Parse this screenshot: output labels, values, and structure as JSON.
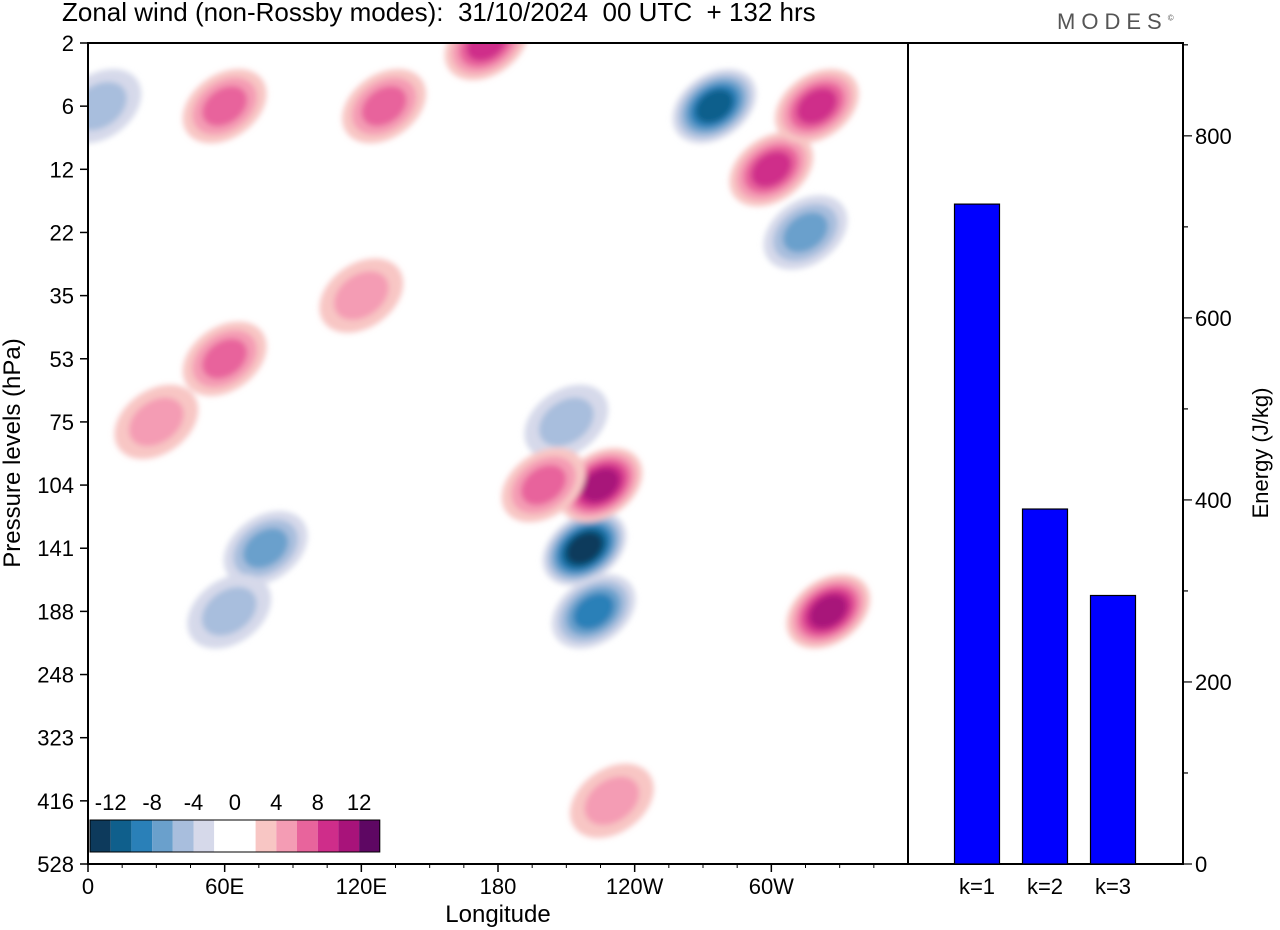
{
  "title": "Zonal wind (non-Rossby modes):  31/10/2024  00 UTC  + 132 hrs",
  "brand": "MODES",
  "brand_mark": "©",
  "colorbar": {
    "labels": [
      "-12",
      "-8",
      "-4",
      "0",
      "4",
      "8",
      "12"
    ],
    "colors": [
      "#0d3a5c",
      "#0f5f8c",
      "#2a80b8",
      "#6aa0cc",
      "#a8bedd",
      "#d6d9ea",
      "#ffffff",
      "#ffffff",
      "#f8c6c4",
      "#f49cb4",
      "#e8649c",
      "#cf2d8a",
      "#a8137a",
      "#5e0763"
    ]
  },
  "chart_data": [
    {
      "type": "heatmap",
      "xlabel": "Longitude",
      "ylabel": "Pressure levels (hPa)",
      "x_ticks": [
        "0",
        "60E",
        "120E",
        "180",
        "120W",
        "60W"
      ],
      "y_ticks": [
        "2",
        "6",
        "12",
        "22",
        "35",
        "53",
        "75",
        "104",
        "141",
        "188",
        "248",
        "323",
        "416",
        "528"
      ],
      "contour_levels": [
        -12,
        -10,
        -8,
        -6,
        -4,
        -2,
        2,
        4,
        6,
        8,
        10,
        12
      ],
      "features": [
        {
          "lon": 218,
          "level": 141,
          "value": -12
        },
        {
          "lon": 222,
          "level": 188,
          "value": -8
        },
        {
          "lon": 275,
          "level": 6,
          "value": -10
        },
        {
          "lon": 315,
          "level": 22,
          "value": -6
        },
        {
          "lon": 210,
          "level": 75,
          "value": -4
        },
        {
          "lon": 78,
          "level": 141,
          "value": -6
        },
        {
          "lon": 62,
          "level": 188,
          "value": -4
        },
        {
          "lon": 225,
          "level": 104,
          "value": 10
        },
        {
          "lon": 200,
          "level": 104,
          "value": 6
        },
        {
          "lon": 325,
          "level": 188,
          "value": 10
        },
        {
          "lon": 300,
          "level": 12,
          "value": 8
        },
        {
          "lon": 320,
          "level": 6,
          "value": 8
        },
        {
          "lon": 60,
          "level": 6,
          "value": 6
        },
        {
          "lon": 130,
          "level": 6,
          "value": 6
        },
        {
          "lon": 175,
          "level": 2,
          "value": 8
        },
        {
          "lon": 60,
          "level": 53,
          "value": 6
        },
        {
          "lon": 30,
          "level": 75,
          "value": 4
        },
        {
          "lon": 120,
          "level": 35,
          "value": 4
        },
        {
          "lon": 230,
          "level": 416,
          "value": 4
        },
        {
          "lon": 5,
          "level": 6,
          "value": -4
        }
      ]
    },
    {
      "type": "bar",
      "categories": [
        "k=1",
        "k=2",
        "k=3"
      ],
      "values": [
        725,
        390,
        295
      ],
      "ylabel": "Energy (J/kg)",
      "y_ticks": [
        0,
        200,
        400,
        600,
        800
      ],
      "ylim": [
        0,
        902
      ],
      "bar_color": "#0000ff"
    }
  ]
}
